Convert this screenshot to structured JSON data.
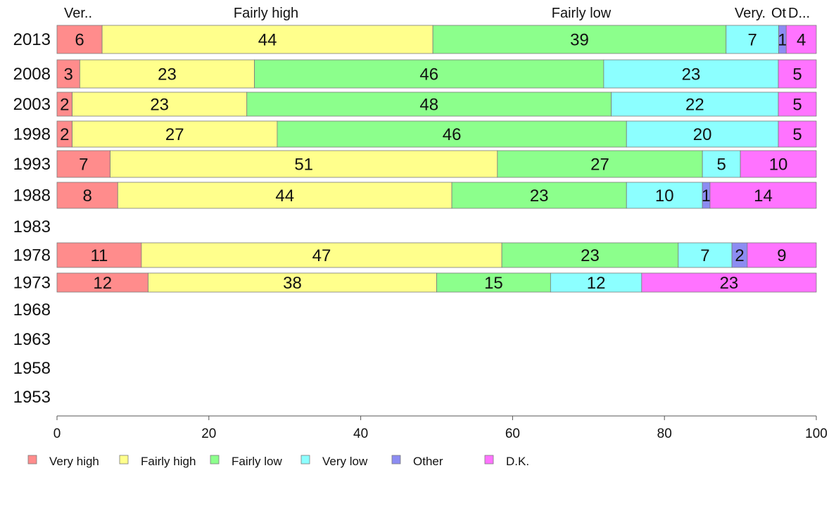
{
  "chart_data": {
    "type": "bar",
    "orientation": "horizontal",
    "stacked": true,
    "title": "",
    "xlabel": "",
    "ylabel": "",
    "xlim": [
      0,
      100
    ],
    "x_ticks": [
      0,
      20,
      40,
      60,
      80,
      100
    ],
    "grid": false,
    "legend_position": "bottom",
    "categories": [
      "2013",
      "2008",
      "2003",
      "1998",
      "1993",
      "1988",
      "1983",
      "1978",
      "1973",
      "1968",
      "1963",
      "1958",
      "1953"
    ],
    "series": [
      {
        "name": "Very high",
        "color": "#ff8c8c",
        "values": [
          6,
          3,
          2,
          2,
          7,
          8,
          null,
          11,
          12,
          null,
          null,
          null,
          null
        ]
      },
      {
        "name": "Fairly high",
        "color": "#ffff8c",
        "values": [
          44,
          23,
          23,
          27,
          51,
          44,
          null,
          47,
          38,
          null,
          null,
          null,
          null
        ]
      },
      {
        "name": "Fairly low",
        "color": "#8cff8c",
        "values": [
          39,
          46,
          48,
          46,
          27,
          23,
          null,
          23,
          15,
          null,
          null,
          null,
          null
        ]
      },
      {
        "name": "Very low",
        "color": "#8cffff",
        "values": [
          7,
          23,
          22,
          20,
          5,
          10,
          null,
          7,
          12,
          null,
          null,
          null,
          null
        ]
      },
      {
        "name": "Other",
        "color": "#8c8cf2",
        "values": [
          1,
          0,
          0,
          0,
          0,
          1,
          null,
          2,
          0,
          null,
          null,
          null,
          null
        ]
      },
      {
        "name": "D.K.",
        "color": "#ff73ff",
        "values": [
          4,
          5,
          5,
          5,
          10,
          14,
          null,
          9,
          23,
          null,
          null,
          null,
          null
        ]
      }
    ],
    "top_labels": [
      "Ver..",
      "Fairly high",
      "Fairly low",
      "Very.",
      "Ot",
      "D..."
    ]
  }
}
